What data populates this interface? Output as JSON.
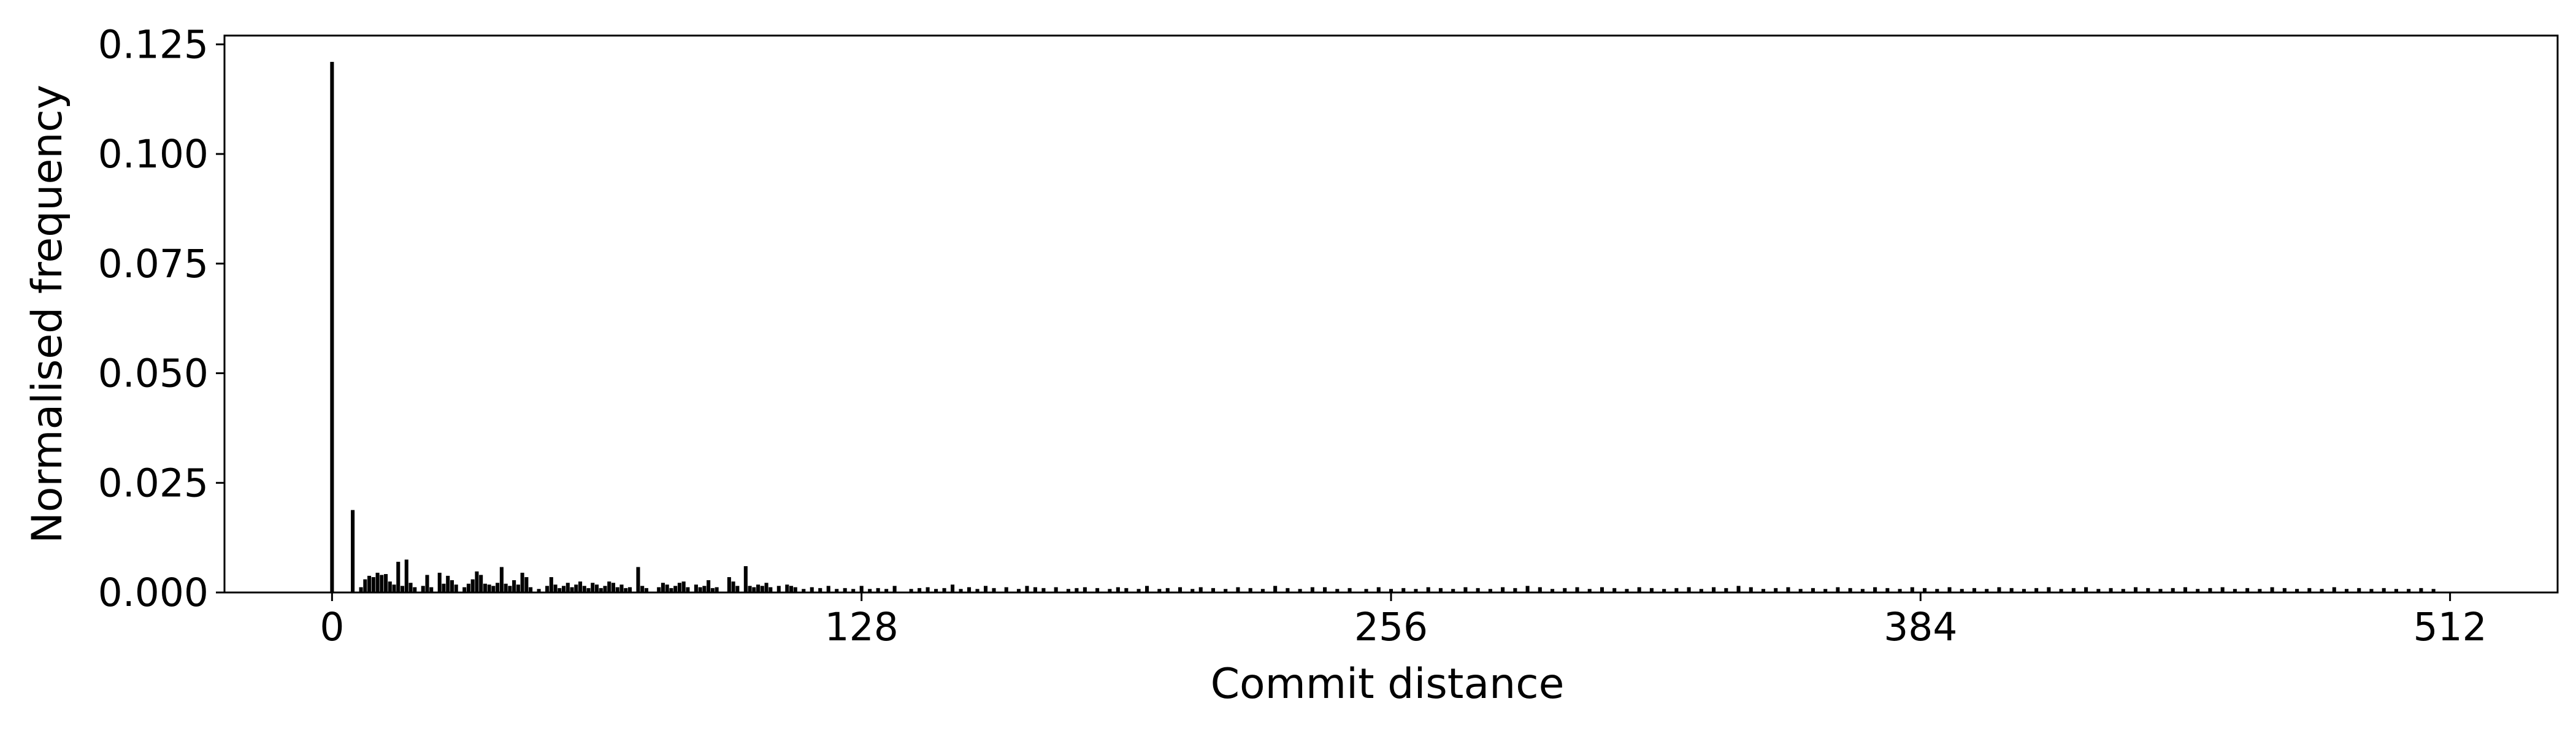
{
  "chart_data": {
    "type": "bar",
    "title": "",
    "xlabel": "Commit distance",
    "ylabel": "Normalised frequency",
    "xlim": [
      -26,
      538
    ],
    "ylim": [
      0,
      0.127
    ],
    "xticks": [
      0,
      128,
      256,
      384,
      512
    ],
    "xtick_labels": [
      "0",
      "128",
      "256",
      "384",
      "512"
    ],
    "yticks": [
      0,
      0.025,
      0.05,
      0.075,
      0.1,
      0.125
    ],
    "ytick_labels": [
      "0.000",
      "0.025",
      "0.050",
      "0.075",
      "0.100",
      "0.125"
    ],
    "grid": false,
    "legend": "none",
    "colors": {
      "bar": "#000000",
      "axes": "#000000",
      "background": "#ffffff"
    },
    "points": [
      [
        0,
        0.121
      ],
      [
        5,
        0.0188
      ],
      [
        7,
        0.0012
      ],
      [
        8,
        0.003
      ],
      [
        9,
        0.0038
      ],
      [
        10,
        0.0035
      ],
      [
        11,
        0.0045
      ],
      [
        12,
        0.004
      ],
      [
        13,
        0.0042
      ],
      [
        14,
        0.0025
      ],
      [
        15,
        0.0018
      ],
      [
        16,
        0.007
      ],
      [
        17,
        0.0015
      ],
      [
        18,
        0.0075
      ],
      [
        19,
        0.0022
      ],
      [
        20,
        0.0012
      ],
      [
        22,
        0.0015
      ],
      [
        23,
        0.004
      ],
      [
        24,
        0.0012
      ],
      [
        26,
        0.0045
      ],
      [
        27,
        0.002
      ],
      [
        28,
        0.0038
      ],
      [
        29,
        0.0028
      ],
      [
        30,
        0.0018
      ],
      [
        32,
        0.0012
      ],
      [
        33,
        0.002
      ],
      [
        34,
        0.003
      ],
      [
        35,
        0.0048
      ],
      [
        36,
        0.004
      ],
      [
        37,
        0.002
      ],
      [
        38,
        0.0018
      ],
      [
        39,
        0.0015
      ],
      [
        40,
        0.0022
      ],
      [
        41,
        0.0058
      ],
      [
        42,
        0.002
      ],
      [
        43,
        0.0015
      ],
      [
        44,
        0.0028
      ],
      [
        45,
        0.0018
      ],
      [
        46,
        0.0045
      ],
      [
        47,
        0.0035
      ],
      [
        48,
        0.0012
      ],
      [
        50,
        0.0008
      ],
      [
        52,
        0.0015
      ],
      [
        53,
        0.0035
      ],
      [
        54,
        0.0018
      ],
      [
        55,
        0.001
      ],
      [
        56,
        0.0015
      ],
      [
        57,
        0.0022
      ],
      [
        58,
        0.0012
      ],
      [
        59,
        0.0018
      ],
      [
        60,
        0.0025
      ],
      [
        61,
        0.0015
      ],
      [
        62,
        0.001
      ],
      [
        63,
        0.0022
      ],
      [
        64,
        0.0018
      ],
      [
        65,
        0.001
      ],
      [
        66,
        0.0015
      ],
      [
        67,
        0.0025
      ],
      [
        68,
        0.0022
      ],
      [
        69,
        0.0012
      ],
      [
        70,
        0.0018
      ],
      [
        71,
        0.001
      ],
      [
        72,
        0.0012
      ],
      [
        74,
        0.0058
      ],
      [
        75,
        0.0015
      ],
      [
        76,
        0.001
      ],
      [
        79,
        0.0012
      ],
      [
        80,
        0.0022
      ],
      [
        81,
        0.0018
      ],
      [
        82,
        0.001
      ],
      [
        83,
        0.0015
      ],
      [
        84,
        0.0022
      ],
      [
        85,
        0.0025
      ],
      [
        86,
        0.0012
      ],
      [
        88,
        0.0018
      ],
      [
        89,
        0.0012
      ],
      [
        90,
        0.0015
      ],
      [
        91,
        0.0028
      ],
      [
        92,
        0.001
      ],
      [
        93,
        0.0012
      ],
      [
        96,
        0.0035
      ],
      [
        97,
        0.0025
      ],
      [
        98,
        0.0015
      ],
      [
        100,
        0.006
      ],
      [
        101,
        0.0015
      ],
      [
        102,
        0.0012
      ],
      [
        103,
        0.0018
      ],
      [
        104,
        0.0015
      ],
      [
        105,
        0.0022
      ],
      [
        106,
        0.0012
      ],
      [
        108,
        0.0015
      ],
      [
        110,
        0.0018
      ],
      [
        111,
        0.0015
      ],
      [
        112,
        0.0012
      ],
      [
        114,
        0.0008
      ],
      [
        116,
        0.0012
      ],
      [
        118,
        0.001
      ],
      [
        120,
        0.0015
      ],
      [
        122,
        0.0008
      ],
      [
        124,
        0.001
      ],
      [
        126,
        0.0008
      ],
      [
        128,
        0.0015
      ],
      [
        130,
        0.0008
      ],
      [
        132,
        0.001
      ],
      [
        134,
        0.0008
      ],
      [
        136,
        0.0015
      ],
      [
        140,
        0.0008
      ],
      [
        142,
        0.001
      ],
      [
        144,
        0.0012
      ],
      [
        146,
        0.0008
      ],
      [
        148,
        0.001
      ],
      [
        150,
        0.0018
      ],
      [
        152,
        0.0008
      ],
      [
        154,
        0.0012
      ],
      [
        156,
        0.0008
      ],
      [
        158,
        0.0015
      ],
      [
        160,
        0.001
      ],
      [
        163,
        0.0012
      ],
      [
        166,
        0.0008
      ],
      [
        168,
        0.0015
      ],
      [
        170,
        0.0012
      ],
      [
        172,
        0.001
      ],
      [
        175,
        0.0012
      ],
      [
        178,
        0.0008
      ],
      [
        180,
        0.001
      ],
      [
        182,
        0.0012
      ],
      [
        185,
        0.001
      ],
      [
        188,
        0.0008
      ],
      [
        190,
        0.0012
      ],
      [
        192,
        0.001
      ],
      [
        195,
        0.0008
      ],
      [
        197,
        0.0015
      ],
      [
        200,
        0.0008
      ],
      [
        202,
        0.001
      ],
      [
        205,
        0.0012
      ],
      [
        208,
        0.0008
      ],
      [
        210,
        0.0012
      ],
      [
        213,
        0.001
      ],
      [
        216,
        0.0008
      ],
      [
        219,
        0.0012
      ],
      [
        222,
        0.001
      ],
      [
        225,
        0.0008
      ],
      [
        228,
        0.0015
      ],
      [
        231,
        0.001
      ],
      [
        234,
        0.0008
      ],
      [
        237,
        0.0012
      ],
      [
        240,
        0.0012
      ],
      [
        243,
        0.0008
      ],
      [
        246,
        0.001
      ],
      [
        250,
        0.0008
      ],
      [
        253,
        0.0012
      ],
      [
        256,
        0.0008
      ],
      [
        259,
        0.001
      ],
      [
        262,
        0.0008
      ],
      [
        265,
        0.0012
      ],
      [
        268,
        0.001
      ],
      [
        271,
        0.0008
      ],
      [
        274,
        0.0012
      ],
      [
        277,
        0.001
      ],
      [
        280,
        0.0008
      ],
      [
        283,
        0.0012
      ],
      [
        286,
        0.001
      ],
      [
        289,
        0.0015
      ],
      [
        292,
        0.0012
      ],
      [
        295,
        0.0008
      ],
      [
        298,
        0.001
      ],
      [
        301,
        0.0012
      ],
      [
        304,
        0.0008
      ],
      [
        307,
        0.0012
      ],
      [
        310,
        0.001
      ],
      [
        313,
        0.0008
      ],
      [
        316,
        0.0012
      ],
      [
        319,
        0.001
      ],
      [
        322,
        0.0008
      ],
      [
        325,
        0.001
      ],
      [
        328,
        0.0012
      ],
      [
        331,
        0.0008
      ],
      [
        334,
        0.0012
      ],
      [
        337,
        0.001
      ],
      [
        340,
        0.0015
      ],
      [
        343,
        0.0012
      ],
      [
        346,
        0.0008
      ],
      [
        349,
        0.001
      ],
      [
        352,
        0.0012
      ],
      [
        355,
        0.0008
      ],
      [
        358,
        0.001
      ],
      [
        361,
        0.0008
      ],
      [
        364,
        0.0012
      ],
      [
        367,
        0.001
      ],
      [
        370,
        0.0008
      ],
      [
        373,
        0.0012
      ],
      [
        376,
        0.001
      ],
      [
        379,
        0.0008
      ],
      [
        382,
        0.0012
      ],
      [
        385,
        0.001
      ],
      [
        388,
        0.0008
      ],
      [
        391,
        0.0012
      ],
      [
        394,
        0.0008
      ],
      [
        397,
        0.001
      ],
      [
        400,
        0.0008
      ],
      [
        403,
        0.0012
      ],
      [
        406,
        0.001
      ],
      [
        409,
        0.0008
      ],
      [
        412,
        0.001
      ],
      [
        415,
        0.0012
      ],
      [
        418,
        0.0008
      ],
      [
        421,
        0.001
      ],
      [
        424,
        0.0012
      ],
      [
        427,
        0.0008
      ],
      [
        430,
        0.001
      ],
      [
        433,
        0.0008
      ],
      [
        436,
        0.0012
      ],
      [
        439,
        0.001
      ],
      [
        442,
        0.0008
      ],
      [
        445,
        0.001
      ],
      [
        448,
        0.0012
      ],
      [
        451,
        0.0008
      ],
      [
        454,
        0.001
      ],
      [
        457,
        0.0012
      ],
      [
        460,
        0.0008
      ],
      [
        463,
        0.001
      ],
      [
        466,
        0.0008
      ],
      [
        469,
        0.0012
      ],
      [
        472,
        0.001
      ],
      [
        475,
        0.0008
      ],
      [
        478,
        0.001
      ],
      [
        481,
        0.0008
      ],
      [
        484,
        0.0012
      ],
      [
        487,
        0.0008
      ],
      [
        490,
        0.001
      ],
      [
        493,
        0.0008
      ],
      [
        496,
        0.001
      ],
      [
        499,
        0.0008
      ],
      [
        502,
        0.0008
      ],
      [
        505,
        0.001
      ],
      [
        508,
        0.0008
      ]
    ]
  }
}
